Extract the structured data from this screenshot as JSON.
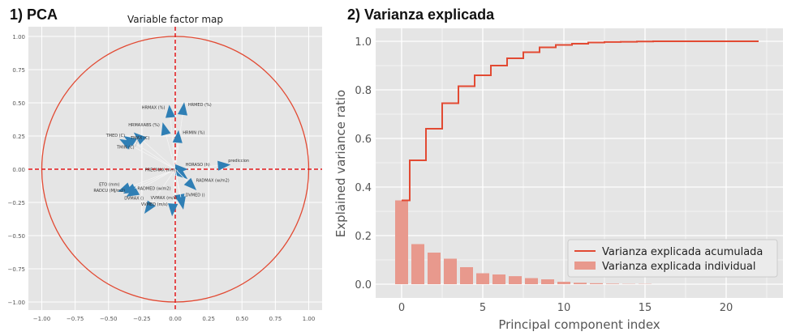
{
  "panels": {
    "left_label": "1) PCA",
    "right_label": "2) Varianza explicada"
  },
  "chart_data": [
    {
      "type": "scatter",
      "subtype": "pca-correlation-circle",
      "title": "Variable factor map",
      "xlim": [
        -1.1,
        1.1
      ],
      "ylim": [
        -1.05,
        1.1
      ],
      "xticks": [
        "−1.00",
        "−0.75",
        "−0.50",
        "−0.25",
        "0.00",
        "0.25",
        "0.50",
        "0.75",
        "1.00"
      ],
      "yticks": [
        "−1.00",
        "−0.75",
        "−0.50",
        "−0.25",
        "0.00",
        "0.25",
        "0.50",
        "0.75",
        "1.00"
      ],
      "grid": true,
      "circle_radius": 1,
      "colors": {
        "arrow": "#2f7fb5",
        "circle": "#e24a33",
        "axis_lines": "#e41a1c",
        "background": "#e5e5e5"
      },
      "variables": [
        {
          "name": "prediccion",
          "x": 0.36,
          "y": 0.03
        },
        {
          "name": "HRMED (%)",
          "x": 0.06,
          "y": 0.45
        },
        {
          "name": "HRMAX (%)",
          "x": -0.04,
          "y": 0.43
        },
        {
          "name": "HRMAXABS (%)",
          "x": -0.08,
          "y": 0.3
        },
        {
          "name": "HRMIN (%)",
          "x": 0.02,
          "y": 0.24
        },
        {
          "name": "TMED (C)",
          "x": -0.34,
          "y": 0.22
        },
        {
          "name": "TMAX (C)",
          "x": -0.37,
          "y": 0.2
        },
        {
          "name": "TMIN (C)",
          "x": -0.27,
          "y": 0.24
        },
        {
          "name": "HORASO (h)",
          "x": 0.04,
          "y": 0.0
        },
        {
          "name": "PRECMAX (mm)",
          "x": 0.05,
          "y": -0.04
        },
        {
          "name": "RADMAX (w/m2)",
          "x": 0.12,
          "y": -0.12
        },
        {
          "name": "DVMED ()",
          "x": 0.04,
          "y": -0.23
        },
        {
          "name": "VVMAX (m/s)",
          "x": 0.05,
          "y": -0.25
        },
        {
          "name": "VVMED (m/s)",
          "x": -0.02,
          "y": -0.3
        },
        {
          "name": "ETO (mm)",
          "x": -0.38,
          "y": -0.15
        },
        {
          "name": "RADMED (w/m2)",
          "x": -0.32,
          "y": -0.18
        },
        {
          "name": "RADCU (MJ/m2)",
          "x": -0.34,
          "y": -0.16
        },
        {
          "name": "DVMAX ()",
          "x": -0.2,
          "y": -0.29
        }
      ]
    },
    {
      "type": "bar",
      "subtype": "bar+step",
      "xlabel": "Principal component index",
      "ylabel": "Explained variance ratio",
      "xlim": [
        -1.5,
        23.5
      ],
      "ylim": [
        0,
        1.05
      ],
      "xticks": [
        0,
        5,
        10,
        15,
        20
      ],
      "yticks": [
        0.0,
        0.2,
        0.4,
        0.6,
        0.8,
        1.0
      ],
      "grid": true,
      "legend": "bottom-right",
      "series": [
        {
          "name": "Varianza explicada acumulada",
          "kind": "step",
          "color": "#e24a33",
          "x": [
            0,
            1,
            2,
            3,
            4,
            5,
            6,
            7,
            8,
            9,
            10,
            11,
            12,
            13,
            14,
            15,
            16,
            17,
            18,
            19,
            20,
            21,
            22
          ],
          "values": [
            0.345,
            0.51,
            0.64,
            0.745,
            0.815,
            0.86,
            0.9,
            0.93,
            0.955,
            0.975,
            0.985,
            0.99,
            0.995,
            0.997,
            0.998,
            0.999,
            1.0,
            1.0,
            1.0,
            1.0,
            1.0,
            1.0,
            1.0
          ]
        },
        {
          "name": "Varianza explicada individual",
          "kind": "bar",
          "color": "#e8998d",
          "x": [
            0,
            1,
            2,
            3,
            4,
            5,
            6,
            7,
            8,
            9,
            10,
            11,
            12,
            13,
            14,
            15,
            16,
            17,
            18,
            19,
            20,
            21,
            22
          ],
          "values": [
            0.345,
            0.165,
            0.13,
            0.105,
            0.07,
            0.045,
            0.04,
            0.033,
            0.025,
            0.02,
            0.01,
            0.006,
            0.004,
            0.002,
            0.001,
            0.001,
            0,
            0,
            0,
            0,
            0,
            0,
            0
          ]
        }
      ]
    }
  ]
}
